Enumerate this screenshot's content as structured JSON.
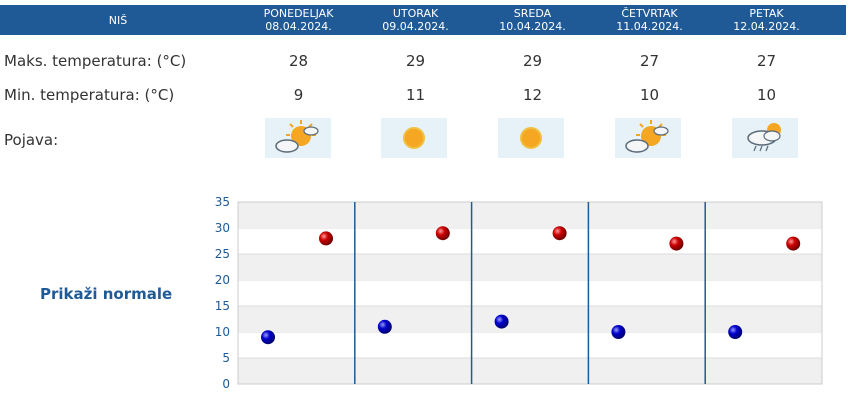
{
  "header": {
    "city": "NIŠ",
    "days": [
      {
        "name": "PONEDELJAK",
        "date": "08.04.2024.",
        "icon": "sun-behind-cloud-icon"
      },
      {
        "name": "UTORAK",
        "date": "09.04.2024.",
        "icon": "sun-icon"
      },
      {
        "name": "SREDA",
        "date": "10.04.2024.",
        "icon": "sun-icon"
      },
      {
        "name": "ČETVRTAK",
        "date": "11.04.2024.",
        "icon": "sun-behind-cloud-icon"
      },
      {
        "name": "PETAK",
        "date": "12.04.2024.",
        "icon": "cloud-rain-sun-icon"
      }
    ]
  },
  "rows": {
    "max_label": "Maks. temperatura: (°C)",
    "min_label": "Min. temperatura: (°C)",
    "phenomenon_label": "Pojava:",
    "max_values": [
      "28",
      "29",
      "29",
      "27",
      "27"
    ],
    "min_values": [
      "9",
      "11",
      "12",
      "10",
      "10"
    ]
  },
  "link": {
    "show_normals": "Prikaži normale"
  },
  "colors": {
    "header_bg": "#1f5a96",
    "max_dot": "#cc0000",
    "min_dot": "#0000cc",
    "band": "#f0f0f0",
    "divider": "#1f5a96"
  },
  "chart_data": {
    "type": "scatter",
    "ylim": [
      0,
      35
    ],
    "yticks": [
      "0",
      "5",
      "10",
      "15",
      "20",
      "25",
      "30",
      "35"
    ],
    "series": [
      {
        "values": [
          28,
          29,
          29,
          27,
          27
        ]
      },
      {
        "values": [
          9,
          11,
          12,
          10,
          10
        ]
      }
    ]
  }
}
